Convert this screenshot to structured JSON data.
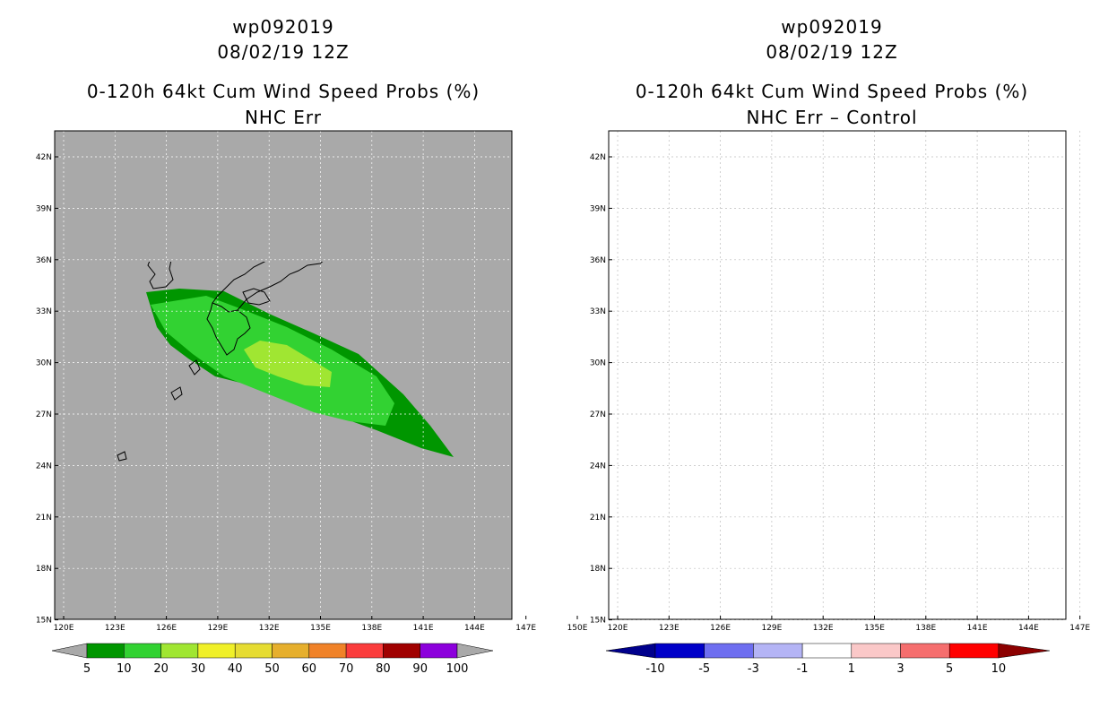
{
  "left_panel": {
    "title_line1": "wp092019",
    "title_line2": "08/02/19 12Z",
    "title_line3": "0-120h 64kt Cum Wind Speed Probs (%)",
    "title_line4": "NHC Err",
    "colorbar_labels": [
      "5",
      "10",
      "20",
      "30",
      "40",
      "50",
      "60",
      "70",
      "80",
      "90",
      "100"
    ],
    "colorbar_colors": [
      "#009600",
      "#32d232",
      "#a0e632",
      "#f0f028",
      "#e6dc32",
      "#e6af2d",
      "#f08228",
      "#fa3c3c",
      "#a00000",
      "#8c00dc"
    ],
    "ocean_color": "#a9a9a9"
  },
  "right_panel": {
    "title_line1": "wp092019",
    "title_line2": "08/02/19 12Z",
    "title_line3": "0-120h 64kt Cum Wind Speed Probs (%)",
    "title_line4": "NHC Err – Control",
    "colorbar_labels": [
      "-10",
      "-5",
      "-3",
      "-1",
      "1",
      "3",
      "5",
      "10"
    ],
    "colorbar_colors": [
      "#0000c8",
      "#6e6ef0",
      "#b4b4f5",
      "#ffffff",
      "#fac8c8",
      "#f56e6e",
      "#ff0000"
    ],
    "end_low": "#00008c",
    "end_high": "#8c0000"
  },
  "axes": {
    "lon_labels": [
      "120E",
      "123E",
      "126E",
      "129E",
      "132E",
      "135E",
      "138E",
      "141E",
      "144E",
      "147E",
      "150E"
    ],
    "lat_labels": [
      "42N",
      "39N",
      "36N",
      "33N",
      "30N",
      "27N",
      "24N",
      "21N",
      "18N",
      "15N"
    ]
  }
}
